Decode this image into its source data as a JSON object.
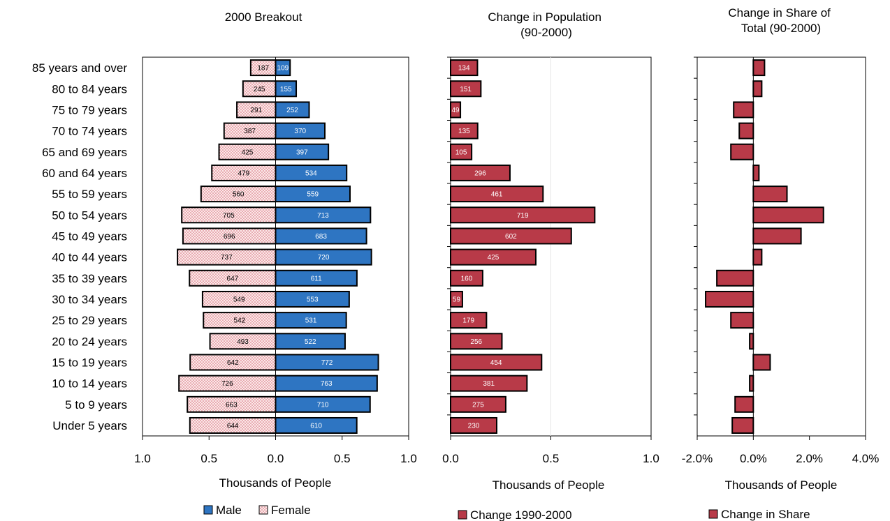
{
  "chart_data": [
    {
      "type": "bar",
      "title": "2000 Breakout",
      "xlabel": "Thousands of People",
      "orientation": "horizontal-population-pyramid",
      "categories": [
        "85 years and over",
        "80 to 84 years",
        "75 to 79 years",
        "70 to 74 years",
        "65 and 69 years",
        "60 and 64 years",
        "55 to 59 years",
        "50 to 54 years",
        "45 to 49 years",
        "40 to 44 years",
        "35 to 39 years",
        "30 to 34 years",
        "25 to 29 years",
        "20 to 24 years",
        "15 to 19 years",
        "10 to 14 years",
        "5 to 9 years",
        "Under 5 years"
      ],
      "xlim": [
        -1.0,
        1.0
      ],
      "xticks": [
        -1.0,
        -0.5,
        0.0,
        0.5,
        1.0
      ],
      "xtick_labels": [
        "1.0",
        "0.5",
        "0.0",
        "0.5",
        "1.0"
      ],
      "series": [
        {
          "name": "Male",
          "color": "#2E75C2",
          "values": [
            109,
            155,
            252,
            370,
            397,
            534,
            559,
            713,
            683,
            720,
            611,
            553,
            531,
            522,
            772,
            763,
            710,
            610
          ]
        },
        {
          "name": "Female",
          "color": "#F7DADA",
          "pattern": "dots",
          "values": [
            187,
            245,
            291,
            387,
            425,
            479,
            560,
            705,
            696,
            737,
            647,
            549,
            542,
            493,
            642,
            726,
            663,
            644
          ]
        }
      ],
      "legend_position": "bottom"
    },
    {
      "type": "bar",
      "title": "Change in Population (90-2000)",
      "xlabel": "Thousands of People",
      "orientation": "horizontal",
      "xlim": [
        0.0,
        1.0
      ],
      "xticks": [
        0.0,
        0.5,
        1.0
      ],
      "xtick_labels": [
        "0.0",
        "0.5",
        "1.0"
      ],
      "series": [
        {
          "name": "Change 1990-2000",
          "color": "#B83A48",
          "values": [
            134,
            151,
            49,
            135,
            105,
            296,
            461,
            719,
            602,
            425,
            160,
            59,
            179,
            256,
            454,
            381,
            275,
            230
          ]
        }
      ],
      "legend_position": "bottom"
    },
    {
      "type": "bar",
      "title": "Change in Share of Total (90-2000)",
      "xlabel": "Thousands of People",
      "orientation": "horizontal",
      "xlim": [
        -0.02,
        0.04
      ],
      "xticks": [
        -0.02,
        0.0,
        0.02,
        0.04
      ],
      "xtick_labels": [
        "-2.0%",
        "0.0%",
        "2.0%",
        "4.0%"
      ],
      "series": [
        {
          "name": "Change in Share",
          "color": "#B83A48",
          "values": [
            0.004,
            0.003,
            -0.007,
            -0.005,
            -0.008,
            0.002,
            0.012,
            0.025,
            0.017,
            0.003,
            -0.013,
            -0.017,
            -0.008,
            -0.0013,
            0.006,
            -0.0013,
            -0.0065,
            -0.0075
          ]
        }
      ],
      "legend_position": "bottom"
    }
  ]
}
